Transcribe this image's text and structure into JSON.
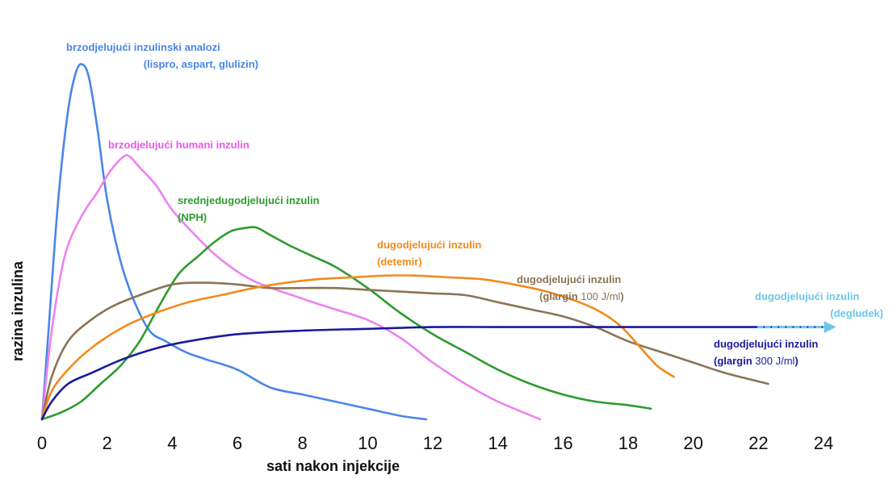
{
  "chart_data": {
    "type": "line",
    "xlabel": "sati nakon injekcije",
    "ylabel": "razina inzulina",
    "xlim": [
      0,
      24
    ],
    "ylim": [
      0,
      1
    ],
    "x_ticks": [
      0,
      2,
      4,
      6,
      8,
      10,
      12,
      14,
      16,
      18,
      20,
      22,
      24
    ],
    "grid": false,
    "series": [
      {
        "color": "#4a86e8",
        "x": [
          0,
          0.2,
          0.5,
          0.8,
          1.05,
          1.25,
          1.45,
          1.7,
          2.0,
          2.4,
          2.8,
          3.3,
          3.8,
          4.4,
          5.0,
          6.0,
          7.0,
          8.0,
          9.0,
          10.0,
          11.0,
          11.8
        ],
        "y": [
          0,
          0.25,
          0.62,
          0.87,
          0.98,
          1.0,
          0.96,
          0.82,
          0.62,
          0.45,
          0.34,
          0.25,
          0.22,
          0.19,
          0.17,
          0.14,
          0.09,
          0.07,
          0.05,
          0.03,
          0.01,
          0.0
        ]
      },
      {
        "color": "#ee82ee",
        "x": [
          0,
          0.3,
          0.7,
          1.2,
          1.7,
          2.1,
          2.5,
          2.7,
          3.0,
          3.5,
          4.0,
          4.8,
          5.5,
          6.5,
          8.0,
          9.0,
          10.0,
          11.0,
          12.0,
          13.0,
          14.0,
          15.3
        ],
        "y": [
          0,
          0.25,
          0.46,
          0.57,
          0.64,
          0.7,
          0.74,
          0.74,
          0.71,
          0.66,
          0.59,
          0.51,
          0.45,
          0.39,
          0.34,
          0.31,
          0.28,
          0.23,
          0.16,
          0.1,
          0.05,
          0.0
        ]
      },
      {
        "color": "#2e9b2e",
        "x": [
          0,
          0.6,
          1.2,
          1.8,
          2.4,
          3.0,
          3.6,
          4.2,
          4.8,
          5.3,
          5.8,
          6.3,
          6.6,
          7.0,
          7.6,
          8.3,
          9.0,
          10.0,
          11.0,
          12.0,
          13.0,
          14.0,
          15.0,
          16.0,
          17.0,
          18.0,
          18.7
        ],
        "y": [
          0,
          0.02,
          0.05,
          0.1,
          0.15,
          0.22,
          0.32,
          0.41,
          0.46,
          0.5,
          0.53,
          0.54,
          0.54,
          0.52,
          0.49,
          0.46,
          0.43,
          0.37,
          0.3,
          0.24,
          0.19,
          0.14,
          0.1,
          0.07,
          0.05,
          0.04,
          0.03
        ]
      },
      {
        "color": "#8b7355",
        "x": [
          0,
          0.3,
          0.8,
          1.5,
          2.2,
          3.0,
          4.0,
          5.0,
          6.0,
          7.0,
          8.0,
          9.0,
          10.0,
          11.0,
          12.0,
          13.0,
          14.0,
          15.0,
          16.0,
          17.0,
          18.0,
          19.0,
          20.0,
          21.0,
          22.3
        ],
        "y": [
          0,
          0.12,
          0.22,
          0.28,
          0.32,
          0.35,
          0.38,
          0.385,
          0.38,
          0.37,
          0.37,
          0.37,
          0.365,
          0.36,
          0.355,
          0.35,
          0.33,
          0.31,
          0.29,
          0.26,
          0.22,
          0.19,
          0.16,
          0.13,
          0.1
        ]
      },
      {
        "color": "#f28a1e",
        "x": [
          0,
          0.3,
          0.8,
          1.5,
          2.5,
          3.5,
          4.5,
          5.5,
          6.5,
          7.5,
          8.5,
          9.5,
          10.5,
          11.5,
          12.5,
          13.5,
          14.5,
          15.5,
          16.5,
          17.2,
          17.8,
          18.4,
          18.9,
          19.4
        ],
        "y": [
          0,
          0.08,
          0.14,
          0.2,
          0.26,
          0.3,
          0.33,
          0.35,
          0.37,
          0.385,
          0.395,
          0.4,
          0.405,
          0.405,
          0.4,
          0.395,
          0.38,
          0.36,
          0.33,
          0.3,
          0.26,
          0.2,
          0.15,
          0.12
        ]
      },
      {
        "color": "#1a1a9e",
        "x": [
          0,
          0.3,
          0.8,
          1.5,
          2.5,
          3.5,
          4.5,
          6.0,
          8.0,
          10.0,
          12.0,
          14.0,
          16.0,
          18.0,
          20.0,
          22.0,
          24.0
        ],
        "y": [
          0,
          0.05,
          0.1,
          0.13,
          0.17,
          0.2,
          0.22,
          0.24,
          0.25,
          0.255,
          0.26,
          0.26,
          0.26,
          0.26,
          0.26,
          0.26,
          0.26
        ]
      },
      {
        "color": "#6ec6e6",
        "x": [
          22.0,
          24.2
        ],
        "y": [
          0.26,
          0.26
        ]
      }
    ],
    "annotations": [
      {
        "color": "#4a86e8",
        "lines": [
          [
            {
              "text": "brzodjelujući inzulinski analozi",
              "weight": "bold"
            }
          ],
          [
            {
              "text": "(lispro, aspart, glulizin)",
              "weight": "bold"
            }
          ]
        ]
      },
      {
        "color": "#ee55ee",
        "lines": [
          [
            {
              "text": "brzodjelujući humani inzulin",
              "weight": "bold"
            }
          ]
        ]
      },
      {
        "color": "#2e9b2e",
        "lines": [
          [
            {
              "text": "srednjedugodjelujući inzulin",
              "weight": "bold"
            }
          ],
          [
            {
              "text": "(NPH)",
              "weight": "bold"
            }
          ]
        ]
      },
      {
        "color": "#f28a1e",
        "lines": [
          [
            {
              "text": "dugodjelujući inzulin",
              "weight": "bold"
            }
          ],
          [
            {
              "text": "(detemir)",
              "weight": "bold"
            }
          ]
        ]
      },
      {
        "color": "#8b7355",
        "lines": [
          [
            {
              "text": "dugodjelujući inzulin",
              "weight": "bold"
            }
          ],
          [
            {
              "text": "(glargin ",
              "weight": "bold"
            },
            {
              "text": "100 J/ml",
              "weight": "normal"
            },
            {
              "text": ")",
              "weight": "bold"
            }
          ]
        ]
      },
      {
        "color": "#6ec6e6",
        "lines": [
          [
            {
              "text": "dugodjelujući inzulin",
              "weight": "bold"
            }
          ],
          [
            {
              "text": "(degludek)",
              "weight": "bold"
            }
          ]
        ]
      },
      {
        "color": "#1a1a9e",
        "lines": [
          [
            {
              "text": "dugodjelujući inzulin",
              "weight": "bold"
            }
          ],
          [
            {
              "text": "(glargin ",
              "weight": "bold"
            },
            {
              "text": "300 J/ml",
              "weight": "normal"
            },
            {
              "text": ")",
              "weight": "bold"
            }
          ]
        ]
      }
    ]
  }
}
